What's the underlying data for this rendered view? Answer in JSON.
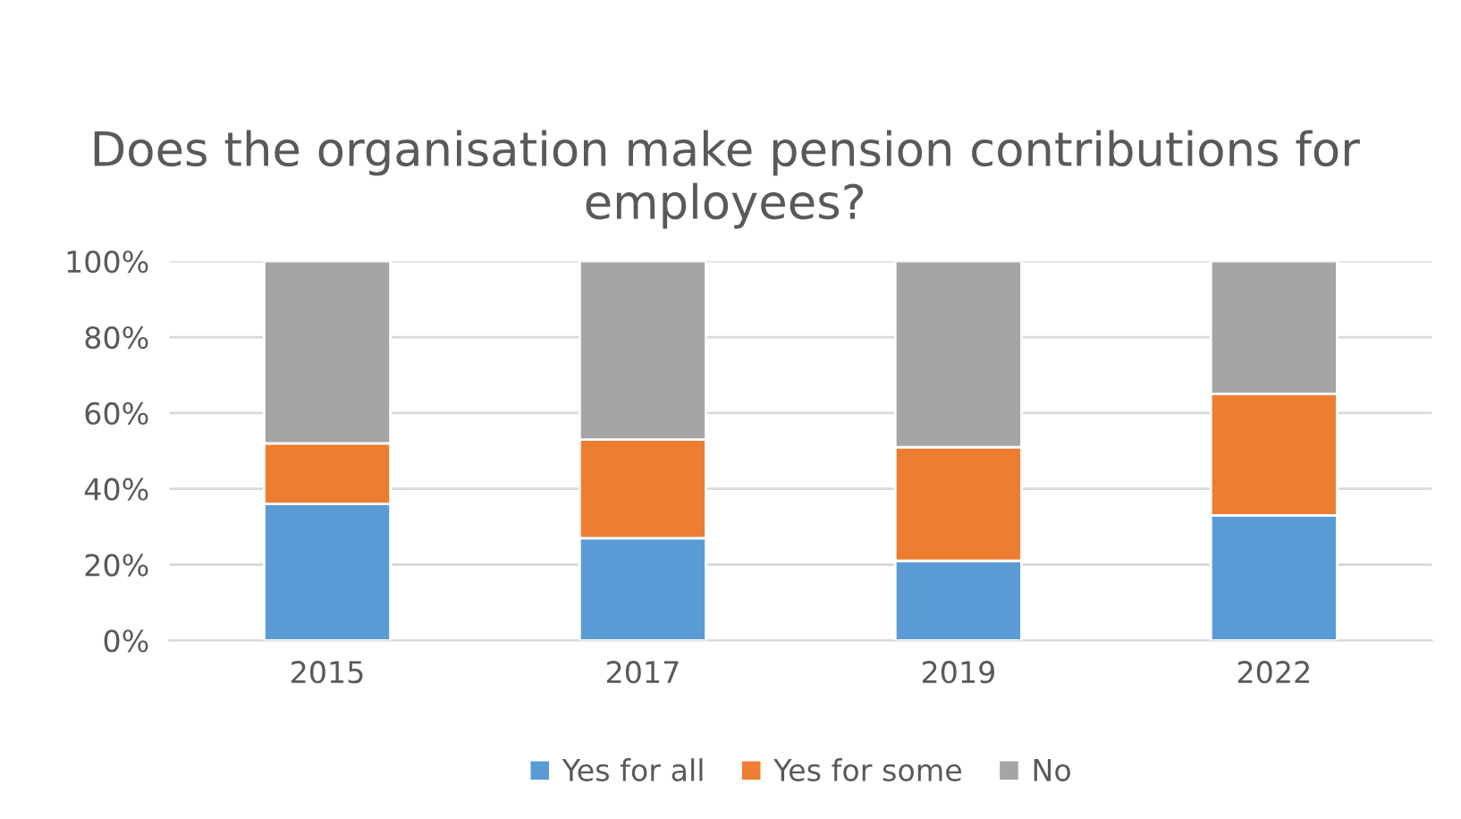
{
  "chart_data": {
    "type": "bar",
    "title": "Does the organisation make pension contributions for employees?",
    "stacked": true,
    "categories": [
      "2015",
      "2017",
      "2019",
      "2022"
    ],
    "series": [
      {
        "name": "Yes for all",
        "color": "#5b9bd5",
        "values": [
          36,
          27,
          21,
          33
        ]
      },
      {
        "name": "Yes for some",
        "color": "#ed7d31",
        "values": [
          16,
          26,
          30,
          32
        ]
      },
      {
        "name": "No",
        "color": "#a5a5a5",
        "values": [
          48,
          47,
          49,
          35
        ]
      }
    ],
    "ylim": [
      0,
      100
    ],
    "yticks": [
      {
        "value": 0,
        "label": "0%"
      },
      {
        "value": 20,
        "label": "20%"
      },
      {
        "value": 40,
        "label": "40%"
      },
      {
        "value": 60,
        "label": "60%"
      },
      {
        "value": 80,
        "label": "80%"
      },
      {
        "value": 100,
        "label": "100%"
      }
    ],
    "grid": "y",
    "legend": "bottom"
  }
}
